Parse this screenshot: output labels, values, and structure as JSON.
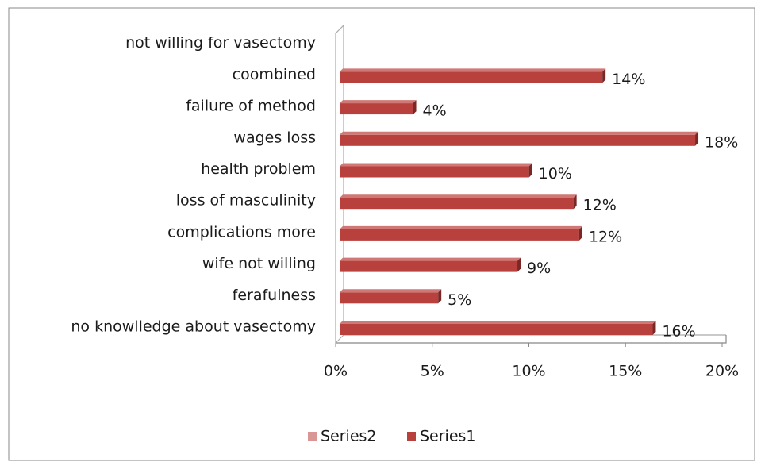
{
  "chart_data": {
    "type": "bar",
    "orientation": "horizontal",
    "categories": [
      "no knowlledge about vasectomy",
      "ferafulness",
      "wife not willing",
      "complications more",
      "loss of masculinity",
      "health problem",
      "wages loss",
      "failure of method",
      "coombined",
      "not willing for vasectomy"
    ],
    "series": [
      {
        "name": "Series2",
        "color": "#d99694",
        "values": [
          null,
          null,
          null,
          null,
          null,
          null,
          null,
          null,
          null,
          null
        ]
      },
      {
        "name": "Series1",
        "color": "#b8413d",
        "values": [
          16.2,
          5.1,
          9.2,
          12.4,
          12.1,
          9.8,
          18.4,
          3.8,
          13.6,
          null
        ],
        "value_labels": [
          "16%",
          "5%",
          "9%",
          "12%",
          "12%",
          "10%",
          "18%",
          "4%",
          "14%",
          null
        ]
      }
    ],
    "xlim": [
      0,
      20
    ],
    "xticks": [
      {
        "value": 0,
        "label": "0%"
      },
      {
        "value": 5,
        "label": "5%"
      },
      {
        "value": 10,
        "label": "10%"
      },
      {
        "value": 15,
        "label": "15%"
      },
      {
        "value": 20,
        "label": "20%"
      }
    ],
    "legend": "bottom"
  }
}
